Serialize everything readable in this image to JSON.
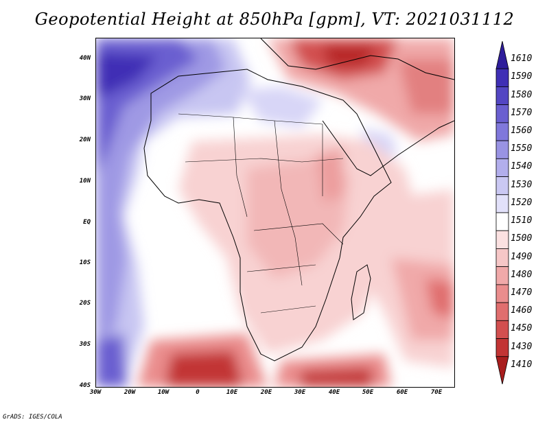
{
  "title": "Geopotential Height at 850hPa [gpm], VT: 2021031112",
  "footer": "GrADS: IGES/COLA",
  "map": {
    "lon_range": [
      -30,
      75
    ],
    "lat_range": [
      -40,
      45
    ],
    "lat_labels": [
      "40N",
      "30N",
      "20N",
      "10N",
      "EQ",
      "10S",
      "20S",
      "30S",
      "40S"
    ],
    "lon_labels": [
      "30W",
      "20W",
      "10W",
      "0",
      "10E",
      "20E",
      "30E",
      "40E",
      "50E",
      "60E",
      "70E"
    ]
  },
  "colorbar": {
    "labels": [
      "1610",
      "1590",
      "1580",
      "1570",
      "1560",
      "1550",
      "1540",
      "1530",
      "1520",
      "1510",
      "1500",
      "1490",
      "1480",
      "1470",
      "1460",
      "1450",
      "1430",
      "1410"
    ],
    "colors": [
      "#2e1d9b",
      "#3f2fb5",
      "#5346c3",
      "#6a5fd0",
      "#8078db",
      "#9993e3",
      "#b2aeec",
      "#cac8f3",
      "#e2e1fa",
      "#ffffff",
      "#fbe1e1",
      "#f6c7c7",
      "#f0a9a9",
      "#ea8d8d",
      "#e06e6e",
      "#d24f4f",
      "#c23434",
      "#a81d1d"
    ]
  }
}
